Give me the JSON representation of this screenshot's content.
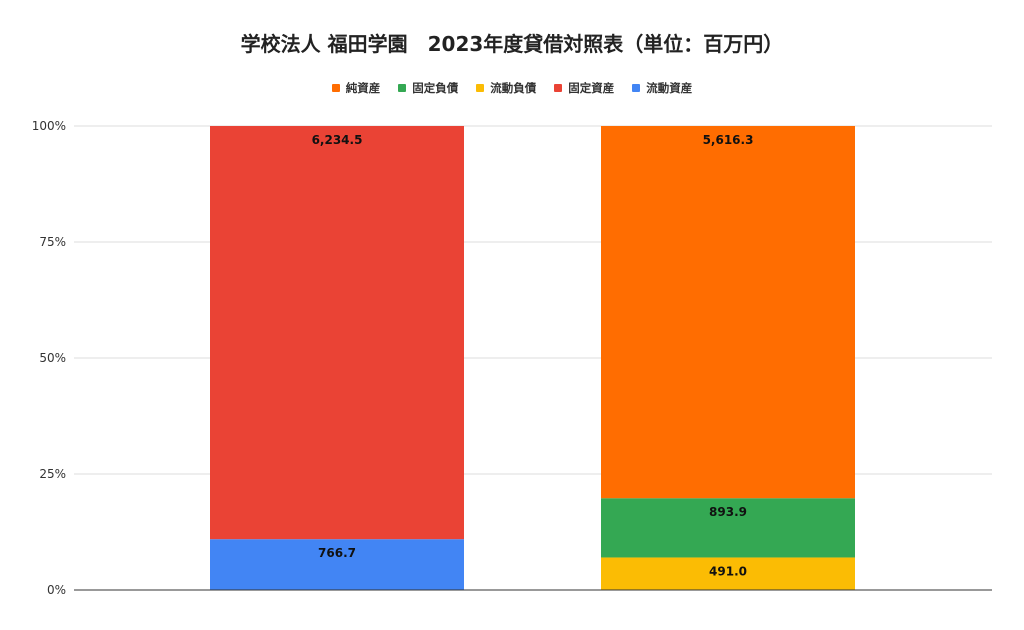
{
  "chart_data": {
    "type": "bar",
    "stacked": true,
    "normalized": true,
    "title": "学校法人 福田学園　2023年度貸借対照表（単位：百万円）",
    "categories": [
      "",
      ""
    ],
    "y_ticks": [
      "0%",
      "25%",
      "50%",
      "75%",
      "100%"
    ],
    "ylim": [
      0,
      100
    ],
    "legend": {
      "placement": "top-center",
      "entries": [
        {
          "name": "純資産",
          "color": "#ff6d01"
        },
        {
          "name": "固定負債",
          "color": "#34a853"
        },
        {
          "name": "流動負債",
          "color": "#fbbc04"
        },
        {
          "name": "固定資産",
          "color": "#ea4335"
        },
        {
          "name": "流動資産",
          "color": "#4285f4"
        }
      ]
    },
    "series": [
      {
        "name": "流動資産",
        "color": "#4285f4",
        "values": [
          766.7,
          0
        ],
        "labels": [
          "766.7",
          ""
        ]
      },
      {
        "name": "固定資産",
        "color": "#ea4335",
        "values": [
          6234.5,
          0
        ],
        "labels": [
          "6,234.5",
          ""
        ]
      },
      {
        "name": "流動負債",
        "color": "#fbbc04",
        "values": [
          0,
          491.0
        ],
        "labels": [
          "",
          "491.0"
        ]
      },
      {
        "name": "固定負債",
        "color": "#34a853",
        "values": [
          0,
          893.9
        ],
        "labels": [
          "",
          "893.9"
        ]
      },
      {
        "name": "純資産",
        "color": "#ff6d01",
        "values": [
          0,
          5616.3
        ],
        "labels": [
          "",
          "5,616.3"
        ]
      }
    ],
    "grid": true
  }
}
